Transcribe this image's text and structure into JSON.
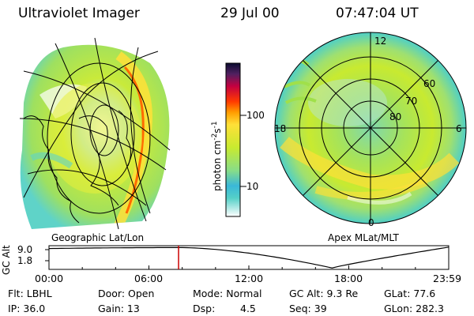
{
  "header": {
    "instrument": "Ultraviolet Imager",
    "date": "29 Jul 00",
    "time": "07:47:04 UT"
  },
  "colorbar": {
    "label": "photon cm",
    "label_exp1": "-2",
    "label_mid": "s",
    "label_exp2": "-1",
    "ticks": [
      "100",
      "10"
    ]
  },
  "panels": {
    "geographic_label": "Geographic Lat/Lon",
    "apex_label": "Apex MLat/MLT"
  },
  "polar": {
    "lat_labels": [
      "60",
      "70",
      "80"
    ],
    "mlt_labels": [
      "12",
      "18",
      "6",
      "0"
    ]
  },
  "altitude_plot": {
    "ylabel": "GC Alt",
    "y_ticks": [
      "9.0",
      "1.8"
    ],
    "x_ticks": [
      "00:00",
      "06:00",
      "12:00",
      "18:00",
      "23:59"
    ],
    "current_time_hours": 7.78
  },
  "info": {
    "filter": "Flt: LBHL",
    "door": "Door: Open",
    "mode": "Mode:  Normal",
    "gc_alt": "GC Alt: 9.3 Re",
    "glat": "GLat:  77.6",
    "ip": "IP: 36.0",
    "gain": "Gain: 13",
    "dsp_label": "Dsp:",
    "dsp_value": "4.5",
    "seq": "Seq: 39",
    "glon": "GLon: 282.3"
  },
  "colors": {
    "background": "#ffffff",
    "marker": "#cc0000",
    "aurora_low": "#5fd3c8",
    "aurora_mid": "#c8ea30",
    "aurora_high": "#ffe038",
    "aurora_peak": "#ff6a00"
  }
}
